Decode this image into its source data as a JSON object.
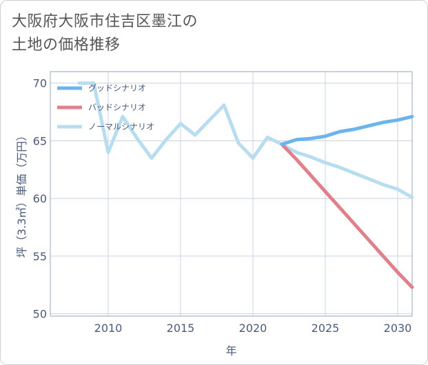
{
  "title": {
    "line1": "大阪府大阪市住吉区墨江の",
    "line2": "土地の価格推移"
  },
  "colors": {
    "good": "#6cb4ee",
    "bad": "#e0808a",
    "normal": "#b8ddf0",
    "grid": "#c8d2e0",
    "text": "#4a5a78"
  },
  "chart_data": {
    "type": "line",
    "xlabel": "年",
    "ylabel": "坪（3.3㎡）単価（万円）",
    "xlim": [
      2006,
      2031
    ],
    "ylim": [
      49.8,
      71
    ],
    "xticks": [
      2010,
      2015,
      2020,
      2025,
      2030
    ],
    "yticks": [
      50,
      55,
      60,
      65,
      70
    ],
    "legend_position": "top-left",
    "grid": true,
    "series": [
      {
        "name": "グッドシナリオ",
        "color_key": "good",
        "x": [
          2022,
          2023,
          2024,
          2025,
          2026,
          2027,
          2028,
          2029,
          2030,
          2031
        ],
        "y": [
          64.7,
          65.1,
          65.2,
          65.4,
          65.8,
          66.0,
          66.3,
          66.6,
          66.8,
          67.1
        ]
      },
      {
        "name": "バッドシナリオ",
        "color_key": "bad",
        "x": [
          2022,
          2023,
          2024,
          2025,
          2026,
          2027,
          2028,
          2029,
          2030,
          2031
        ],
        "y": [
          64.7,
          63.4,
          62.0,
          60.6,
          59.2,
          57.8,
          56.4,
          55.0,
          53.6,
          52.3
        ]
      },
      {
        "name": "ノーマルシナリオ",
        "color_key": "normal",
        "x": [
          2008,
          2009,
          2010,
          2011,
          2012,
          2013,
          2014,
          2015,
          2016,
          2017,
          2018,
          2019,
          2020,
          2021,
          2022,
          2023,
          2024,
          2025,
          2026,
          2027,
          2028,
          2029,
          2030,
          2031
        ],
        "y": [
          70.0,
          70.0,
          64.0,
          67.1,
          65.2,
          63.5,
          65.1,
          66.5,
          65.5,
          66.8,
          68.1,
          64.8,
          63.5,
          65.3,
          64.7,
          64.0,
          63.6,
          63.1,
          62.7,
          62.2,
          61.7,
          61.2,
          60.8,
          60.1
        ]
      }
    ]
  }
}
